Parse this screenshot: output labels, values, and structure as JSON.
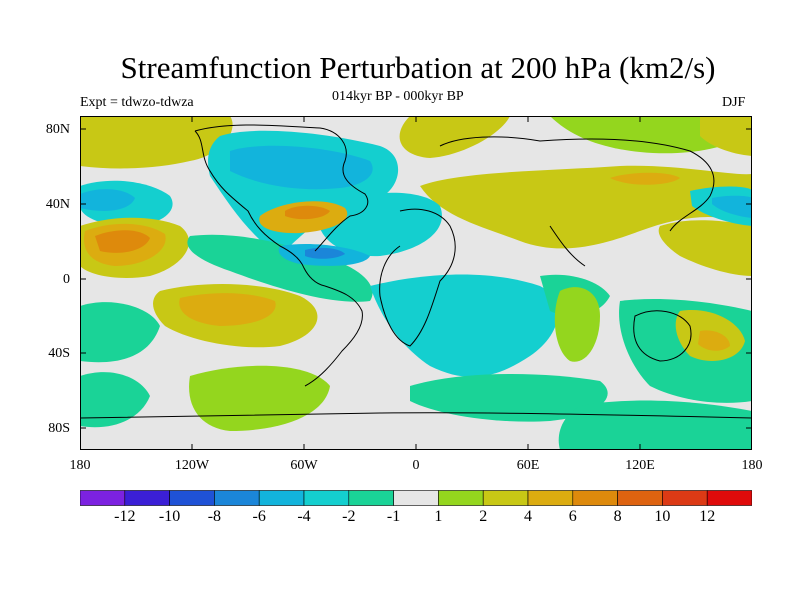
{
  "title": "Streamfunction Perturbation at 200 hPa (km2/s)",
  "subtitle": "014kyr BP - 000kyr BP",
  "experiment_label": "Expt = tdwzo-tdwza",
  "season": "DJF",
  "lat_labels": [
    "80N",
    "40N",
    "0",
    "40S",
    "80S"
  ],
  "lon_labels": [
    "180",
    "120W",
    "60W",
    "0",
    "60E",
    "120E",
    "180"
  ],
  "colorbar": {
    "labels": [
      "-12",
      "-10",
      "-8",
      "-6",
      "-4",
      "-2",
      "-1",
      "1",
      "2",
      "4",
      "6",
      "8",
      "10",
      "12"
    ],
    "colors": [
      "#7c22e0",
      "#3b1fd6",
      "#1f52d6",
      "#1b86d9",
      "#12b4dc",
      "#14cfcf",
      "#1ad397",
      "#e6e6e6",
      "#94d61e",
      "#c8c815",
      "#dcac10",
      "#de8a0c",
      "#de6310",
      "#dc3a15",
      "#df0b0b"
    ]
  },
  "map_colors": {
    "neutral": "#e6e6e6",
    "neg1": "#1ad397",
    "neg2": "#14cfcf",
    "neg4": "#12b4dc",
    "neg6": "#1b86d9",
    "pos1": "#94d61e",
    "pos2": "#c8c815",
    "pos4": "#dcac10",
    "pos6": "#de8a0c"
  }
}
